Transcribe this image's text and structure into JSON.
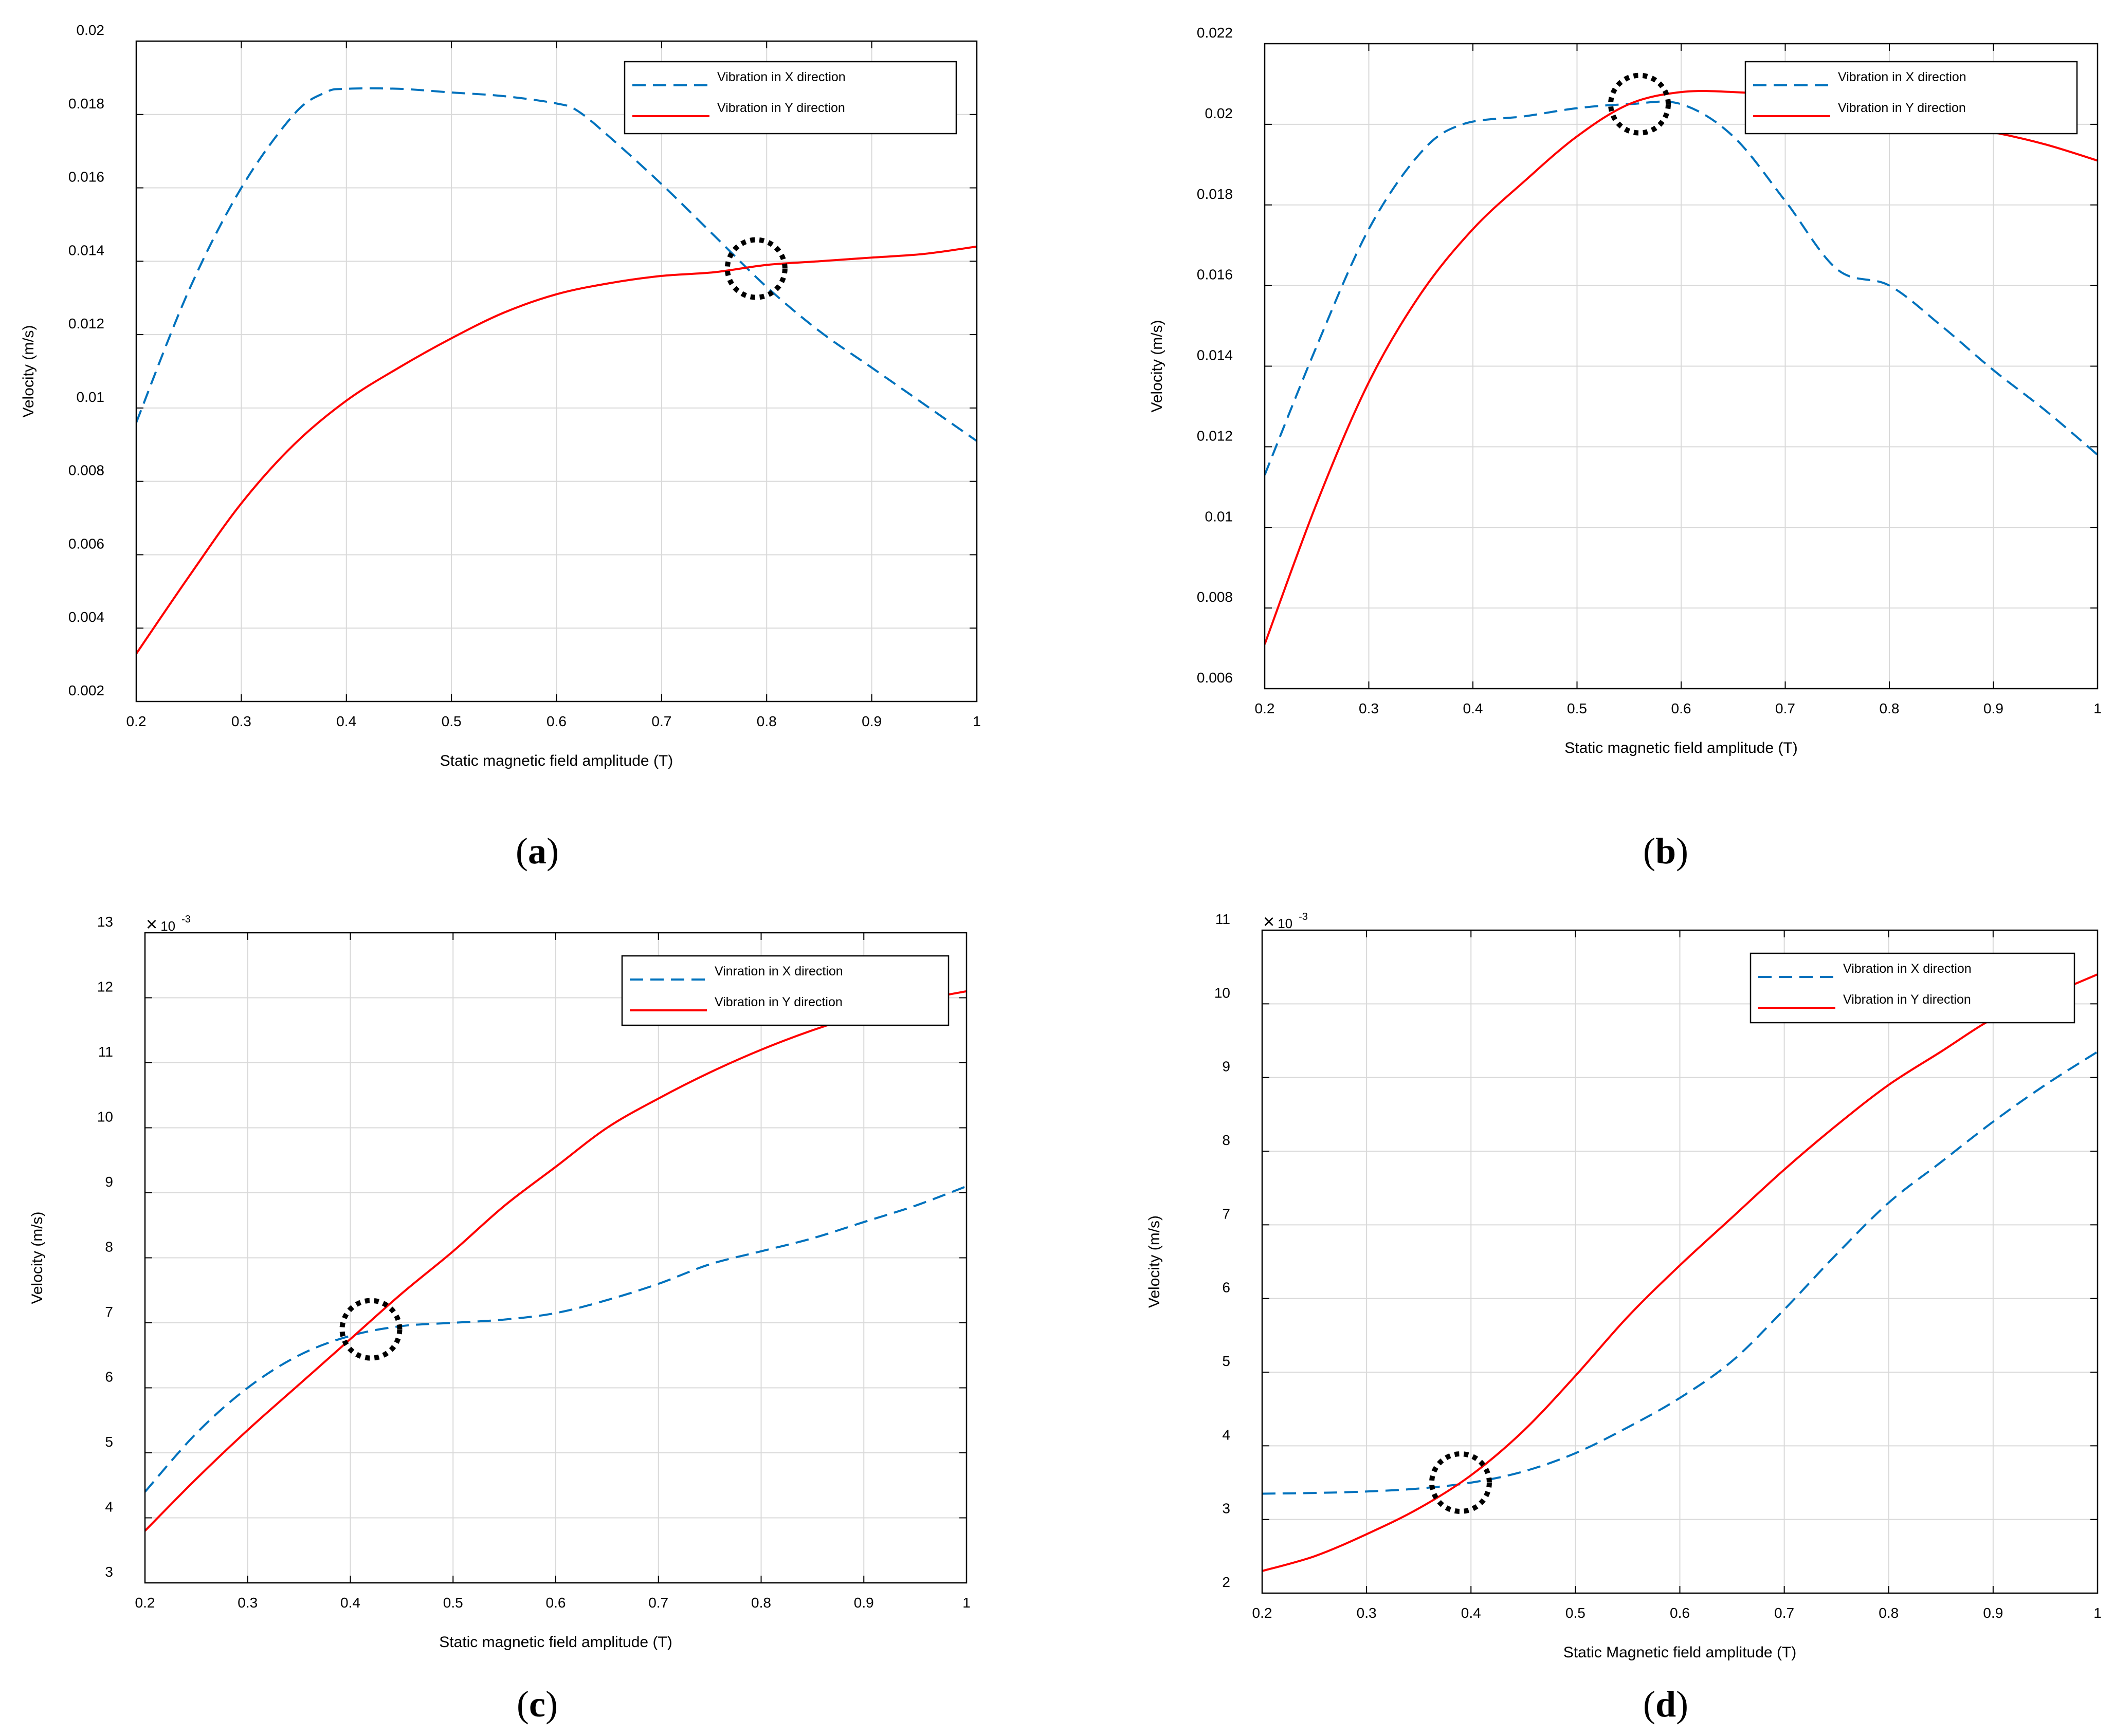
{
  "chart_data": [
    {
      "type": "line",
      "panel_label": "a",
      "xlabel": "Static magnetic field amplitude (T)",
      "ylabel": "Velocity (m/s)",
      "xlim": [
        0.2,
        1
      ],
      "ylim": [
        0.002,
        0.02
      ],
      "x_ticks": [
        0.2,
        0.3,
        0.4,
        0.5,
        0.6,
        0.7,
        0.8,
        0.9,
        1
      ],
      "x_tick_labels": [
        "0.2",
        "0.3",
        "0.4",
        "0.5",
        "0.6",
        "0.7",
        "0.8",
        "0.9",
        "1"
      ],
      "y_ticks": [
        0.002,
        0.004,
        0.006,
        0.008,
        0.01,
        0.012,
        0.014,
        0.016,
        0.018,
        0.02
      ],
      "y_tick_labels": [
        "0.002",
        "0.004",
        "0.006",
        "0.008",
        "0.01",
        "0.012",
        "0.014",
        "0.016",
        "0.018",
        "0.02"
      ],
      "exponent_label": null,
      "grid": true,
      "legend_position": "top-right",
      "series": [
        {
          "name": "Vibration in X direction",
          "style": "dashed",
          "color": "#0072BD",
          "x": [
            0.2,
            0.25,
            0.3,
            0.35,
            0.38,
            0.4,
            0.45,
            0.5,
            0.55,
            0.6,
            0.62,
            0.65,
            0.7,
            0.75,
            0.8,
            0.85,
            0.9,
            0.95,
            1.0
          ],
          "values": [
            0.0096,
            0.0132,
            0.016,
            0.018,
            0.0186,
            0.0187,
            0.0187,
            0.0186,
            0.0185,
            0.0183,
            0.0181,
            0.0174,
            0.0161,
            0.0147,
            0.0133,
            0.0121,
            0.0111,
            0.0101,
            0.0091
          ]
        },
        {
          "name": "Vibration in Y direction",
          "style": "solid",
          "color": "#FF0000",
          "x": [
            0.2,
            0.25,
            0.3,
            0.35,
            0.4,
            0.45,
            0.5,
            0.55,
            0.6,
            0.65,
            0.7,
            0.75,
            0.8,
            0.85,
            0.9,
            0.95,
            1.0
          ],
          "values": [
            0.0033,
            0.0054,
            0.0074,
            0.009,
            0.0102,
            0.0111,
            0.0119,
            0.0126,
            0.0131,
            0.0134,
            0.0136,
            0.0137,
            0.0139,
            0.014,
            0.0141,
            0.0142,
            0.0144
          ]
        }
      ],
      "highlight_circle": {
        "x": 0.79,
        "y": 0.0138
      }
    },
    {
      "type": "line",
      "panel_label": "b",
      "xlabel": "Static magnetic field amplitude (T)",
      "ylabel": "Velocity (m/s)",
      "xlim": [
        0.2,
        1
      ],
      "ylim": [
        0.006,
        0.022
      ],
      "x_ticks": [
        0.2,
        0.3,
        0.4,
        0.5,
        0.6,
        0.7,
        0.8,
        0.9,
        1
      ],
      "x_tick_labels": [
        "0.2",
        "0.3",
        "0.4",
        "0.5",
        "0.6",
        "0.7",
        "0.8",
        "0.9",
        "1"
      ],
      "y_ticks": [
        0.006,
        0.008,
        0.01,
        0.012,
        0.014,
        0.016,
        0.018,
        0.02,
        0.022
      ],
      "y_tick_labels": [
        "0.006",
        "0.008",
        "0.01",
        "0.012",
        "0.014",
        "0.016",
        "0.018",
        "0.02",
        "0.022"
      ],
      "exponent_label": null,
      "grid": true,
      "legend_position": "top-right",
      "series": [
        {
          "name": "Vibration in X direction",
          "style": "dashed",
          "color": "#0072BD",
          "x": [
            0.2,
            0.25,
            0.3,
            0.35,
            0.39,
            0.45,
            0.5,
            0.55,
            0.6,
            0.65,
            0.7,
            0.75,
            0.8,
            0.85,
            0.9,
            0.95,
            1.0
          ],
          "values": [
            0.0113,
            0.0145,
            0.0174,
            0.0193,
            0.02,
            0.0202,
            0.0204,
            0.0205,
            0.0205,
            0.0197,
            0.0181,
            0.0164,
            0.016,
            0.015,
            0.0139,
            0.0129,
            0.0118
          ]
        },
        {
          "name": "Vibration in Y direction",
          "style": "solid",
          "color": "#FF0000",
          "x": [
            0.2,
            0.25,
            0.3,
            0.35,
            0.4,
            0.45,
            0.5,
            0.55,
            0.6,
            0.65,
            0.7,
            0.75,
            0.8,
            0.85,
            0.9,
            0.95,
            1.0
          ],
          "values": [
            0.0071,
            0.0106,
            0.0136,
            0.0158,
            0.0174,
            0.0186,
            0.0197,
            0.0205,
            0.0208,
            0.0208,
            0.0207,
            0.0205,
            0.0202,
            0.02,
            0.0198,
            0.0195,
            0.0191
          ]
        }
      ],
      "highlight_circle": {
        "x": 0.56,
        "y": 0.0205
      }
    },
    {
      "type": "line",
      "panel_label": "c",
      "xlabel": "Static magnetic field amplitude (T)",
      "ylabel": "Velocity (m/s)",
      "xlim": [
        0.2,
        1
      ],
      "ylim": [
        3,
        13
      ],
      "x_ticks": [
        0.2,
        0.3,
        0.4,
        0.5,
        0.6,
        0.7,
        0.8,
        0.9,
        1
      ],
      "x_tick_labels": [
        "0.2",
        "0.3",
        "0.4",
        "0.5",
        "0.6",
        "0.7",
        "0.8",
        "0.9",
        "1"
      ],
      "y_ticks": [
        3,
        4,
        5,
        6,
        7,
        8,
        9,
        10,
        11,
        12,
        13
      ],
      "y_tick_labels": [
        "3",
        "4",
        "5",
        "6",
        "7",
        "8",
        "9",
        "10",
        "11",
        "12",
        "13"
      ],
      "exponent_label": {
        "base": "10",
        "exp": "-3"
      },
      "grid": true,
      "legend_position": "top-right",
      "series": [
        {
          "name": "Vinration in X direction",
          "style": "dashed",
          "color": "#0072BD",
          "x": [
            0.2,
            0.25,
            0.3,
            0.35,
            0.4,
            0.45,
            0.5,
            0.55,
            0.6,
            0.65,
            0.7,
            0.75,
            0.8,
            0.85,
            0.9,
            0.95,
            1.0
          ],
          "values": [
            4.4,
            5.3,
            6.0,
            6.5,
            6.8,
            6.95,
            7.0,
            7.05,
            7.15,
            7.35,
            7.6,
            7.9,
            8.1,
            8.3,
            8.55,
            8.8,
            9.1
          ]
        },
        {
          "name": "Vibration in Y direction",
          "style": "solid",
          "color": "#FF0000",
          "x": [
            0.2,
            0.25,
            0.3,
            0.35,
            0.4,
            0.45,
            0.5,
            0.55,
            0.6,
            0.65,
            0.7,
            0.75,
            0.8,
            0.85,
            0.9,
            0.95,
            1.0
          ],
          "values": [
            3.8,
            4.6,
            5.35,
            6.05,
            6.75,
            7.45,
            8.1,
            8.8,
            9.4,
            10.0,
            10.45,
            10.85,
            11.2,
            11.5,
            11.75,
            11.95,
            12.1
          ]
        }
      ],
      "highlight_circle": {
        "x": 0.42,
        "y": 6.9
      }
    },
    {
      "type": "line",
      "panel_label": "d",
      "xlabel": "Static Magnetic field amplitude (T)",
      "ylabel": "Velocity (m/s)",
      "xlim": [
        0.2,
        1
      ],
      "ylim": [
        2,
        11
      ],
      "x_ticks": [
        0.2,
        0.3,
        0.4,
        0.5,
        0.6,
        0.7,
        0.8,
        0.9,
        1
      ],
      "x_tick_labels": [
        "0.2",
        "0.3",
        "0.4",
        "0.5",
        "0.6",
        "0.7",
        "0.8",
        "0.9",
        "1"
      ],
      "y_ticks": [
        2,
        3,
        4,
        5,
        6,
        7,
        8,
        9,
        10,
        11
      ],
      "y_tick_labels": [
        "2",
        "3",
        "4",
        "5",
        "6",
        "7",
        "8",
        "9",
        "10",
        "11"
      ],
      "exponent_label": {
        "base": "10",
        "exp": "-3"
      },
      "grid": true,
      "legend_position": "top-right",
      "series": [
        {
          "name": "Vibration in X direction",
          "style": "dashed",
          "color": "#0072BD",
          "x": [
            0.2,
            0.25,
            0.3,
            0.35,
            0.4,
            0.45,
            0.5,
            0.55,
            0.6,
            0.65,
            0.7,
            0.75,
            0.8,
            0.85,
            0.9,
            0.95,
            1.0
          ],
          "values": [
            3.35,
            3.36,
            3.38,
            3.42,
            3.5,
            3.65,
            3.9,
            4.25,
            4.65,
            5.15,
            5.85,
            6.6,
            7.3,
            7.85,
            8.4,
            8.9,
            9.35
          ]
        },
        {
          "name": "Vibration in Y direction",
          "style": "solid",
          "color": "#FF0000",
          "x": [
            0.2,
            0.25,
            0.3,
            0.35,
            0.4,
            0.45,
            0.5,
            0.55,
            0.6,
            0.65,
            0.7,
            0.75,
            0.8,
            0.85,
            0.9,
            0.95,
            1.0
          ],
          "values": [
            2.3,
            2.5,
            2.8,
            3.15,
            3.6,
            4.2,
            4.95,
            5.75,
            6.45,
            7.1,
            7.75,
            8.35,
            8.9,
            9.35,
            9.8,
            10.1,
            10.4
          ]
        }
      ],
      "highlight_circle": {
        "x": 0.39,
        "y": 3.5
      }
    }
  ]
}
